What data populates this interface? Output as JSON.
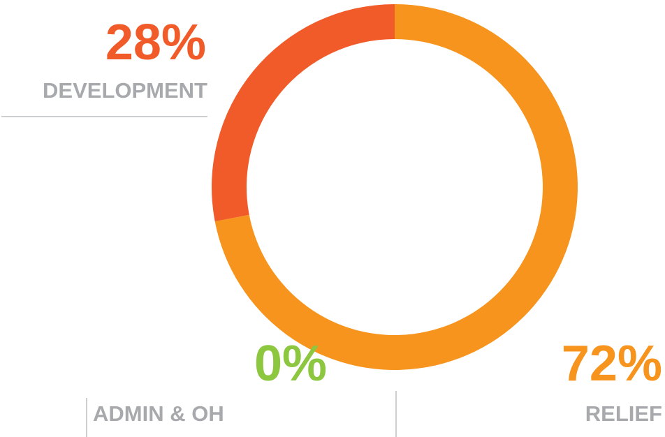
{
  "chart_data": {
    "type": "donut",
    "categories": [
      "RELIEF",
      "DEVELOPMENT",
      "ADMIN & OH"
    ],
    "values": [
      72,
      28,
      0
    ],
    "value_labels": [
      "72%",
      "28%",
      "0%"
    ],
    "colors": [
      "#f7941d",
      "#f15a29",
      "#8dc63f"
    ]
  }
}
